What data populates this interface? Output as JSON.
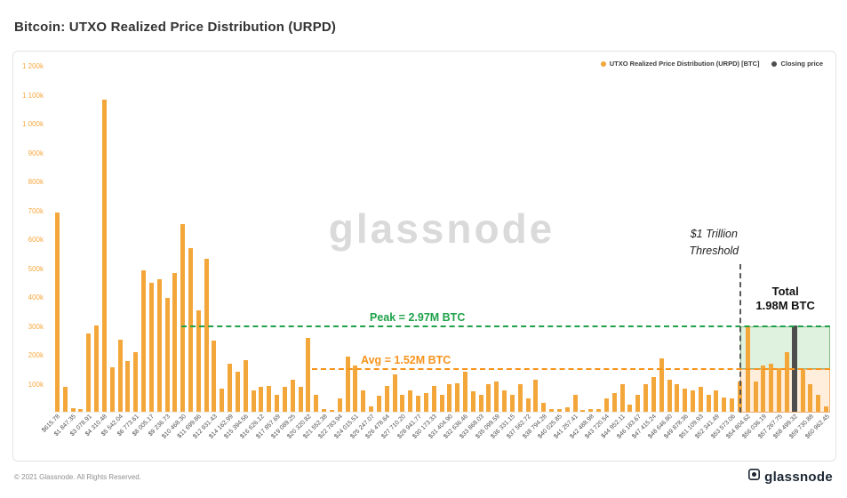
{
  "page_title": "Bitcoin: UTXO Realized Price Distribution (URPD)",
  "watermark": "glassnode",
  "footer": {
    "copyright": "© 2021 Glassnode. All Rights Reserved.",
    "brand": "glassnode"
  },
  "colors": {
    "bar": "#F3A73B",
    "closing_bar": "#4d4d4d",
    "peak_green": "#1fa14a",
    "avg_orange": "#F7941D",
    "axis_label_orange": "#F5A93F",
    "threshold_gray": "#5a5a5a",
    "watermark_gray": "#dadada"
  },
  "chart_data": {
    "type": "bar",
    "title": "Bitcoin: UTXO Realized Price Distribution (URPD)",
    "xlabel": "",
    "ylabel": "",
    "values_unit": "thousand BTC",
    "ylim_k": [
      0,
      1200
    ],
    "y_tick_labels": [
      "1 200k",
      "1 100k",
      "1 000k",
      "900k",
      "800k",
      "700k",
      "600k",
      "500k",
      "400k",
      "300k",
      "200k",
      "100k"
    ],
    "x_tick_labels": [
      "$615.78",
      "$1 847.35",
      "$3 078.91",
      "$4 310.48",
      "$5 542.04",
      "$6 773.61",
      "$8 005.17",
      "$9 236.73",
      "$10 468.30",
      "$11 699.86",
      "$12 931.43",
      "$14 162.99",
      "$15 394.56",
      "$16 626.12",
      "$17 857.69",
      "$19 089.25",
      "$20 320.82",
      "$21 552.38",
      "$22 783.94",
      "$24 015.51",
      "$25 247.07",
      "$26 478.64",
      "$27 710.20",
      "$28 941.77",
      "$30 173.33",
      "$31 404.90",
      "$32 636.46",
      "$33 868.03",
      "$35 099.59",
      "$36 331.15",
      "$37 562.72",
      "$38 794.28",
      "$40 025.85",
      "$41 257.41",
      "$42 488.98",
      "$43 720.54",
      "$44 952.11",
      "$46 183.67",
      "$47 415.24",
      "$48 646.80",
      "$49 878.36",
      "$51 109.93",
      "$52 341.49",
      "$53 573.06",
      "$54 804.62",
      "$56 036.19",
      "$57 267.75",
      "$58 499.32",
      "$59 730.88",
      "$60 962.45"
    ],
    "bars_k": [
      690,
      85,
      12,
      8,
      270,
      300,
      1080,
      155,
      250,
      175,
      205,
      490,
      445,
      460,
      395,
      480,
      650,
      565,
      350,
      530,
      245,
      80,
      165,
      140,
      180,
      75,
      85,
      90,
      60,
      85,
      110,
      85,
      255,
      60,
      10,
      5,
      45,
      190,
      160,
      75,
      20,
      55,
      90,
      130,
      60,
      75,
      55,
      65,
      90,
      60,
      95,
      100,
      140,
      70,
      60,
      95,
      105,
      75,
      60,
      95,
      45,
      110,
      30,
      8,
      10,
      15,
      60,
      5,
      8,
      10,
      45,
      65,
      95,
      25,
      60,
      95,
      120,
      185,
      110,
      95,
      80,
      75,
      85,
      60,
      75,
      50,
      45,
      105,
      300,
      105,
      160,
      165,
      150,
      205,
      300,
      145,
      95,
      60,
      20
    ],
    "closing_price_index": 94,
    "legend": [
      "UTXO Realized Price Distribution (URPD) [BTC]",
      "Closing price"
    ],
    "annotations_text": {
      "threshold_line1": "$1 Trillion",
      "threshold_line2": "Threshold",
      "total_line1": "Total",
      "total_line2": "1.98M BTC",
      "peak": "Peak = 2.97M BTC",
      "avg": "Avg = 1.52M BTC"
    },
    "layout": {
      "n_bars": 99,
      "labels_every": 2,
      "grid": false,
      "legend_position": "top-right",
      "threshold_index": 87.6,
      "peak_line_start_index": 16.3,
      "avg_line_start_index": 33,
      "peak_line_y_k": 300,
      "avg_line_y_k": 150
    }
  }
}
